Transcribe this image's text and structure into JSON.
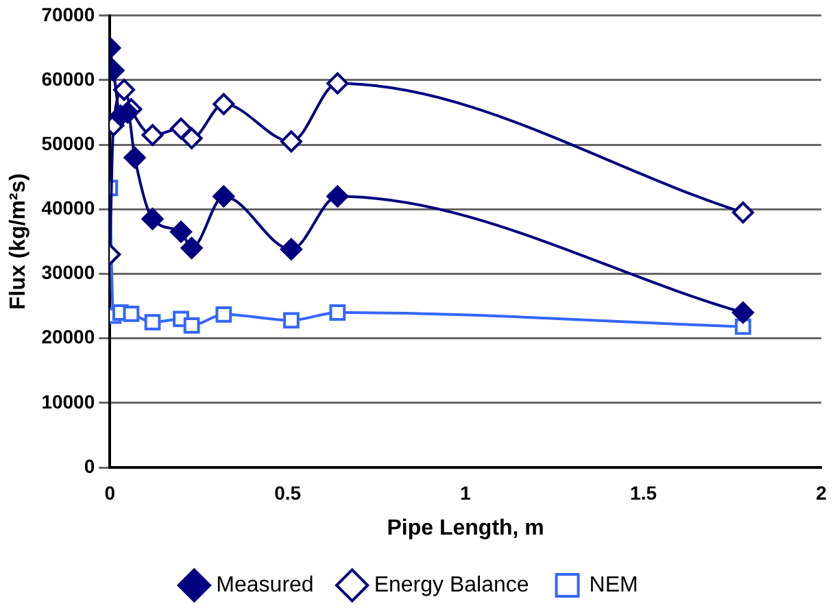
{
  "chart_data": {
    "type": "line",
    "xlabel": "Pipe Length, m",
    "ylabel": "Flux (kg/m²s)",
    "xlim": [
      0,
      2
    ],
    "xticks": [
      0,
      0.5,
      1,
      1.5,
      2
    ],
    "ylim": [
      0,
      70000
    ],
    "yticks": [
      0,
      10000,
      20000,
      30000,
      40000,
      50000,
      60000,
      70000
    ],
    "grid": "y",
    "legend": "bottom",
    "line_style": "solid",
    "series": [
      {
        "name": "Measured",
        "color": "#000080",
        "marker": "diamond",
        "x": [
          0,
          0.01,
          0.03,
          0.05,
          0.07,
          0.12,
          0.2,
          0.23,
          0.32,
          0.51,
          0.64,
          1.78
        ],
        "values": [
          65000,
          61500,
          54500,
          55000,
          48000,
          38500,
          36500,
          34000,
          42000,
          33800,
          42000,
          24000
        ]
      },
      {
        "name": "Energy Balance",
        "color": "#000080",
        "marker": "diamond",
        "x": [
          0,
          0.01,
          0.04,
          0.06,
          0.12,
          0.2,
          0.23,
          0.32,
          0.51,
          0.64,
          1.78
        ],
        "values": [
          33000,
          53000,
          58500,
          55500,
          51500,
          52500,
          51000,
          56300,
          50500,
          59500,
          39500
        ]
      },
      {
        "name": "NEM",
        "color": "#3366ff",
        "marker": "square",
        "x": [
          0,
          0.01,
          0.03,
          0.06,
          0.12,
          0.2,
          0.23,
          0.32,
          0.51,
          0.64,
          1.78
        ],
        "values": [
          43300,
          23500,
          24000,
          23800,
          22500,
          23000,
          22000,
          23700,
          22800,
          24000,
          21800
        ]
      }
    ]
  }
}
